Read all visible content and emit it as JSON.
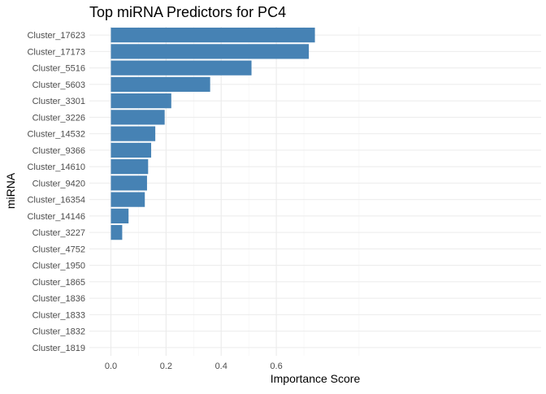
{
  "chart_data": {
    "type": "bar",
    "orientation": "horizontal",
    "title": "Top miRNA Predictors for PC4",
    "xlabel": "Importance Score",
    "ylabel": "miRNA",
    "xlim": [
      0,
      0.74
    ],
    "x_ticks": [
      0.0,
      0.2,
      0.4,
      0.6
    ],
    "x_tick_labels": [
      "0.0",
      "0.2",
      "0.4",
      "0.6"
    ],
    "grid": true,
    "bar_color": "#4682B4",
    "categories": [
      "Cluster_17623",
      "Cluster_17173",
      "Cluster_5516",
      "Cluster_5603",
      "Cluster_3301",
      "Cluster_3226",
      "Cluster_14532",
      "Cluster_9366",
      "Cluster_14610",
      "Cluster_9420",
      "Cluster_16354",
      "Cluster_14146",
      "Cluster_3227",
      "Cluster_4752",
      "Cluster_1950",
      "Cluster_1865",
      "Cluster_1836",
      "Cluster_1833",
      "Cluster_1832",
      "Cluster_1819"
    ],
    "values": [
      0.74,
      0.718,
      0.51,
      0.36,
      0.219,
      0.195,
      0.161,
      0.146,
      0.135,
      0.131,
      0.123,
      0.064,
      0.041,
      0,
      0,
      0,
      0,
      0,
      0,
      0
    ]
  }
}
